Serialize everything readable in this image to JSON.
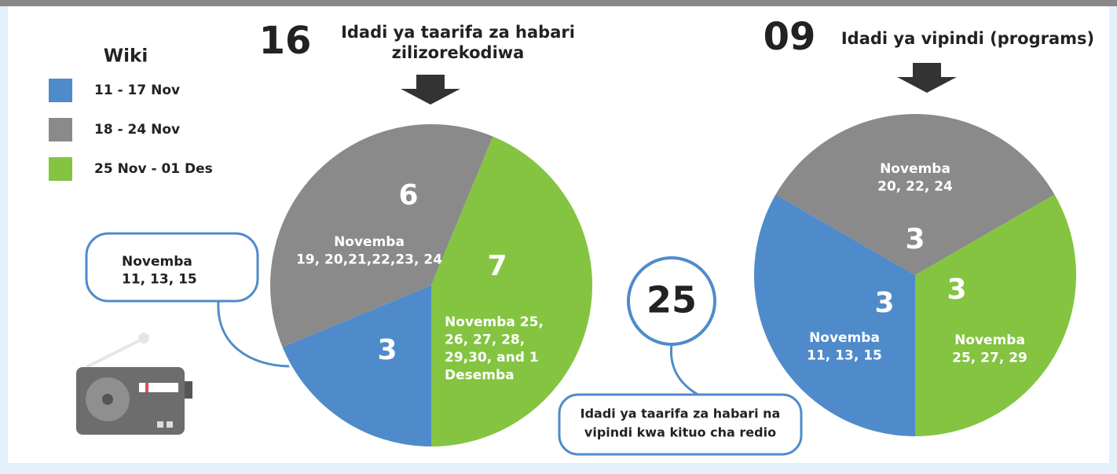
{
  "legend": {
    "title": "Wiki",
    "items": [
      {
        "name": "11 - 17 Nov",
        "color": "#4f8bca"
      },
      {
        "name": "18 - 24 Nov",
        "color": "#8a8a8a"
      },
      {
        "name": "25 Nov - 01 Des",
        "color": "#84c441"
      }
    ]
  },
  "chart_data": [
    {
      "type": "pie",
      "total": 16,
      "title": [
        "Idadi ya taarifa za habari",
        "zilizorekodiwa"
      ],
      "values": [
        3,
        6,
        7
      ],
      "notes": [
        [
          "Novemba",
          "11, 13, 15"
        ],
        [
          "Novemba",
          "19, 20,21,22,23, 24"
        ],
        [
          "Novemba 25,",
          "26, 27, 28,",
          "29,30, and 1",
          "Desemba"
        ]
      ]
    },
    {
      "type": "pie",
      "total": {
        "value": 9,
        "label": "09"
      },
      "title": [
        "Idadi ya vipindi (programs)"
      ],
      "values": [
        3,
        3,
        3
      ],
      "notes": [
        [
          "Novemba",
          "11, 13, 15"
        ],
        [
          "Novemba",
          "20, 22, 24"
        ],
        [
          "Novemba",
          "25, 27, 29"
        ]
      ]
    }
  ],
  "annotation": {
    "value": 25,
    "text": [
      "Idadi ya taarifa za habari na",
      "vipindi kwa kituo cha redio"
    ]
  }
}
